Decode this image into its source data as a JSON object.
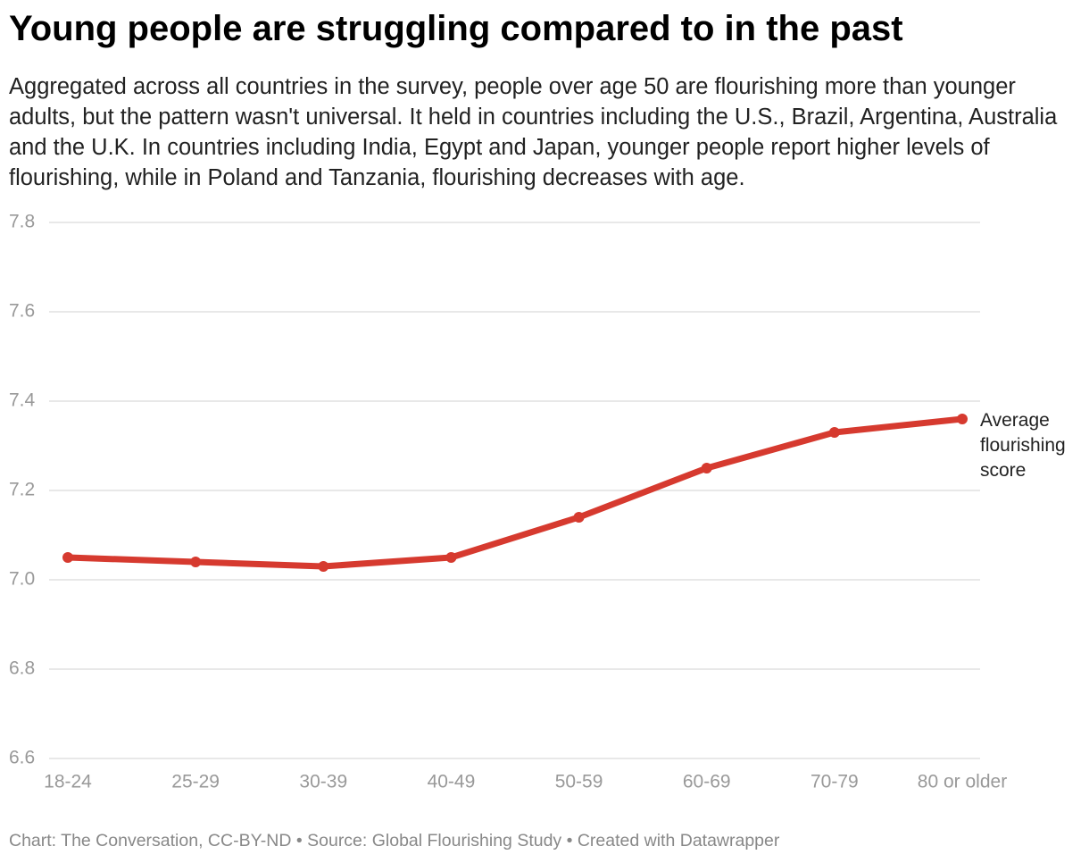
{
  "chart_data": {
    "type": "line",
    "title": "Young people are struggling compared to in the past",
    "subtitle": "Aggregated across all countries in the survey, people over age 50 are flourishing more than younger adults, but the pattern wasn't universal. It held in countries including the U.S., Brazil, Argentina, Australia and the U.K. In countries including India, Egypt and Japan, younger people report higher levels of flourishing, while in Poland and Tanzania, flourishing decreases with age.",
    "footer": "Chart: The Conversation, CC-BY-ND • Source: Global Flourishing Study • Created with Datawrapper",
    "categories": [
      "18-24",
      "25-29",
      "30-39",
      "40-49",
      "50-59",
      "60-69",
      "70-79",
      "80 or older"
    ],
    "series": [
      {
        "name": "Average flourishing score",
        "color": "#d63a2f",
        "values": [
          7.05,
          7.04,
          7.03,
          7.05,
          7.14,
          7.25,
          7.33,
          7.36
        ]
      }
    ],
    "ylim": [
      6.6,
      7.8
    ],
    "yticks": [
      6.6,
      6.8,
      {
        "value": 7,
        "label": "7.0"
      },
      7.2,
      7.4,
      7.6,
      7.8
    ],
    "grid": true
  }
}
